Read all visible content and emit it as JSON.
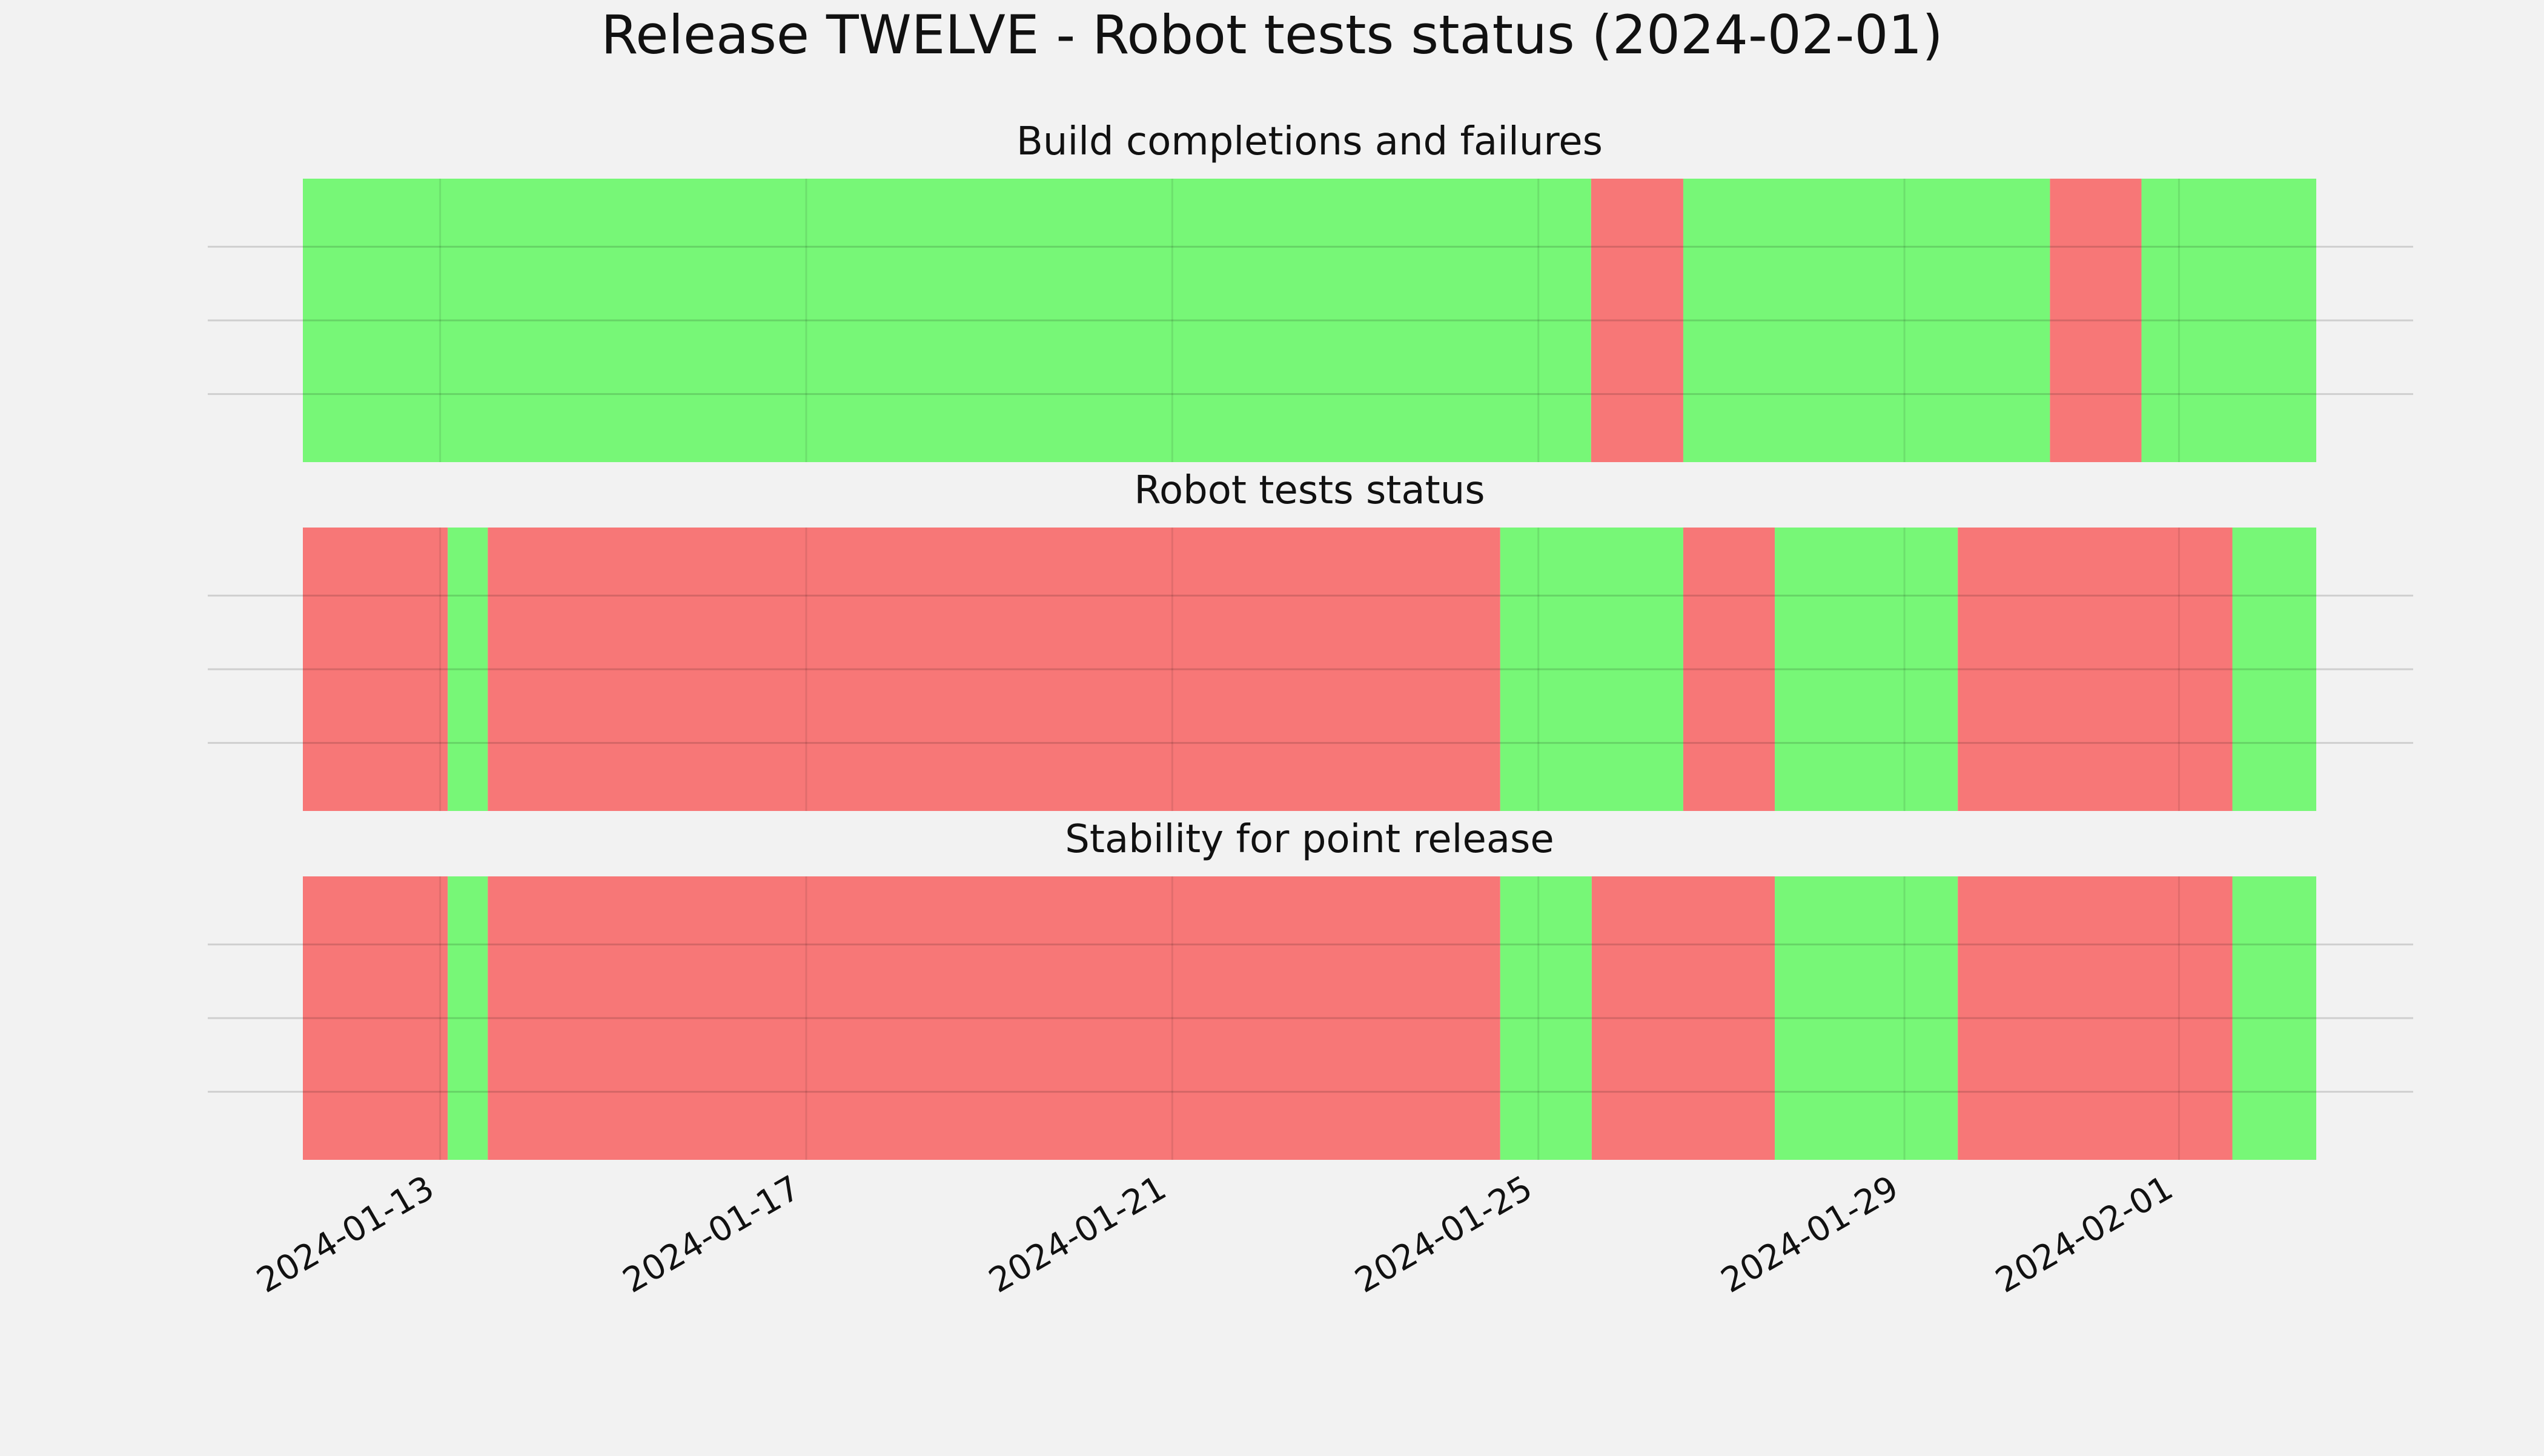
{
  "chart_data": {
    "type": "timeline",
    "title": "Release TWELVE - Robot tests status (2024-02-01)",
    "x_start": "2024-01-11T12:00",
    "x_end": "2024-02-02T12:00",
    "x_ticks": [
      "2024-01-13",
      "2024-01-17",
      "2024-01-21",
      "2024-01-25",
      "2024-01-29",
      "2024-02-01"
    ],
    "grid": true,
    "status_colors": {
      "pass": "#77f777",
      "fail": "#f77777"
    },
    "panels": [
      {
        "title": "Build completions and failures",
        "segments": [
          {
            "start": "2024-01-11T12:00",
            "end": "2024-01-25T13:50",
            "status": "pass"
          },
          {
            "start": "2024-01-25T13:50",
            "end": "2024-01-26T14:00",
            "status": "fail"
          },
          {
            "start": "2024-01-26T14:00",
            "end": "2024-01-30T14:10",
            "status": "pass"
          },
          {
            "start": "2024-01-30T14:10",
            "end": "2024-01-31T14:10",
            "status": "fail"
          },
          {
            "start": "2024-01-31T14:10",
            "end": "2024-02-02T12:00",
            "status": "pass"
          }
        ]
      },
      {
        "title": "Robot tests status",
        "segments": [
          {
            "start": "2024-01-11T12:00",
            "end": "2024-01-13T02:00",
            "status": "fail"
          },
          {
            "start": "2024-01-13T02:00",
            "end": "2024-01-13T12:30",
            "status": "pass"
          },
          {
            "start": "2024-01-13T12:30",
            "end": "2024-01-24T14:00",
            "status": "fail"
          },
          {
            "start": "2024-01-24T14:00",
            "end": "2024-01-26T14:00",
            "status": "pass"
          },
          {
            "start": "2024-01-26T14:00",
            "end": "2024-01-27T14:00",
            "status": "fail"
          },
          {
            "start": "2024-01-27T14:00",
            "end": "2024-01-29T14:00",
            "status": "pass"
          },
          {
            "start": "2024-01-29T14:00",
            "end": "2024-02-01T14:00",
            "status": "fail"
          },
          {
            "start": "2024-02-01T14:00",
            "end": "2024-02-02T12:00",
            "status": "pass"
          }
        ]
      },
      {
        "title": "Stability for point release",
        "segments": [
          {
            "start": "2024-01-11T12:00",
            "end": "2024-01-13T02:00",
            "status": "fail"
          },
          {
            "start": "2024-01-13T02:00",
            "end": "2024-01-13T12:30",
            "status": "pass"
          },
          {
            "start": "2024-01-13T12:30",
            "end": "2024-01-24T14:00",
            "status": "fail"
          },
          {
            "start": "2024-01-24T14:00",
            "end": "2024-01-25T14:00",
            "status": "pass"
          },
          {
            "start": "2024-01-25T14:00",
            "end": "2024-01-27T14:00",
            "status": "fail"
          },
          {
            "start": "2024-01-27T14:00",
            "end": "2024-01-29T14:00",
            "status": "pass"
          },
          {
            "start": "2024-01-29T14:00",
            "end": "2024-02-01T14:00",
            "status": "fail"
          },
          {
            "start": "2024-02-01T14:00",
            "end": "2024-02-02T12:00",
            "status": "pass"
          }
        ]
      }
    ]
  }
}
